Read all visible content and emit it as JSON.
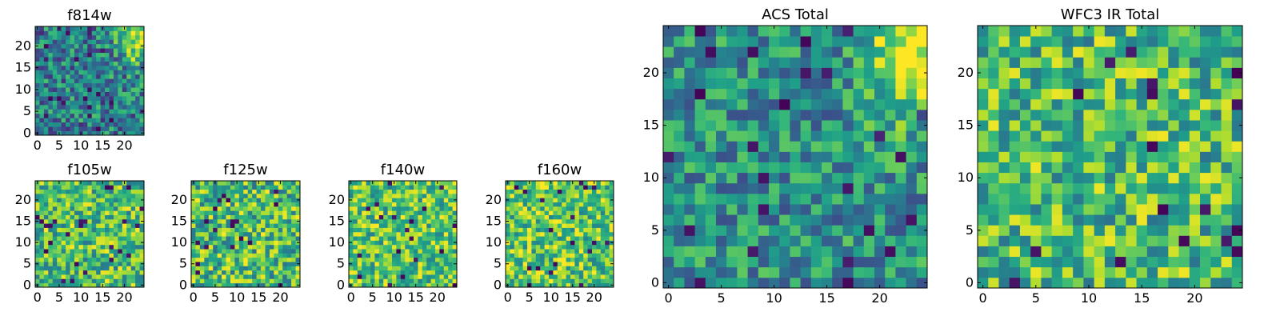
{
  "chart_data": [
    {
      "type": "heatmap",
      "title": "f814w",
      "xticks": [
        0,
        5,
        10,
        15,
        20
      ],
      "yticks": [
        0,
        5,
        10,
        15,
        20
      ],
      "xlim": [
        0,
        25
      ],
      "ylim": [
        0,
        25
      ],
      "grid_size": [
        25,
        25
      ],
      "colormap": "viridis",
      "hotspot": "top-right bright region",
      "seed": 11
    },
    {
      "type": "heatmap",
      "title": "f105w",
      "xticks": [
        0,
        5,
        10,
        15,
        20
      ],
      "yticks": [
        0,
        5,
        10,
        15,
        20
      ],
      "xlim": [
        0,
        25
      ],
      "ylim": [
        0,
        25
      ],
      "grid_size": [
        25,
        25
      ],
      "colormap": "viridis",
      "seed": 23
    },
    {
      "type": "heatmap",
      "title": "f125w",
      "xticks": [
        0,
        5,
        10,
        15,
        20
      ],
      "yticks": [
        0,
        5,
        10,
        15,
        20
      ],
      "xlim": [
        0,
        25
      ],
      "ylim": [
        0,
        25
      ],
      "grid_size": [
        25,
        25
      ],
      "colormap": "viridis",
      "seed": 37
    },
    {
      "type": "heatmap",
      "title": "f140w",
      "xticks": [
        0,
        5,
        10,
        15,
        20
      ],
      "yticks": [
        0,
        5,
        10,
        15,
        20
      ],
      "xlim": [
        0,
        25
      ],
      "ylim": [
        0,
        25
      ],
      "grid_size": [
        25,
        25
      ],
      "colormap": "viridis",
      "seed": 41
    },
    {
      "type": "heatmap",
      "title": "f160w",
      "xticks": [
        0,
        5,
        10,
        15,
        20
      ],
      "yticks": [
        0,
        5,
        10,
        15,
        20
      ],
      "xlim": [
        0,
        25
      ],
      "ylim": [
        0,
        25
      ],
      "grid_size": [
        25,
        25
      ],
      "colormap": "viridis",
      "seed": 53
    },
    {
      "type": "heatmap",
      "title": "ACS Total",
      "xticks": [
        0,
        5,
        10,
        15,
        20
      ],
      "yticks": [
        0,
        5,
        10,
        15,
        20
      ],
      "xlim": [
        0,
        25
      ],
      "ylim": [
        0,
        25
      ],
      "grid_size": [
        25,
        25
      ],
      "colormap": "viridis",
      "hotspot": "top-right bright region",
      "seed": 67
    },
    {
      "type": "heatmap",
      "title": "WFC3 IR Total",
      "xticks": [
        0,
        5,
        10,
        15,
        20
      ],
      "yticks": [
        0,
        5,
        10,
        15,
        20
      ],
      "xlim": [
        0,
        25
      ],
      "ylim": [
        0,
        25
      ],
      "grid_size": [
        25,
        25
      ],
      "colormap": "viridis",
      "seed": 79
    }
  ]
}
